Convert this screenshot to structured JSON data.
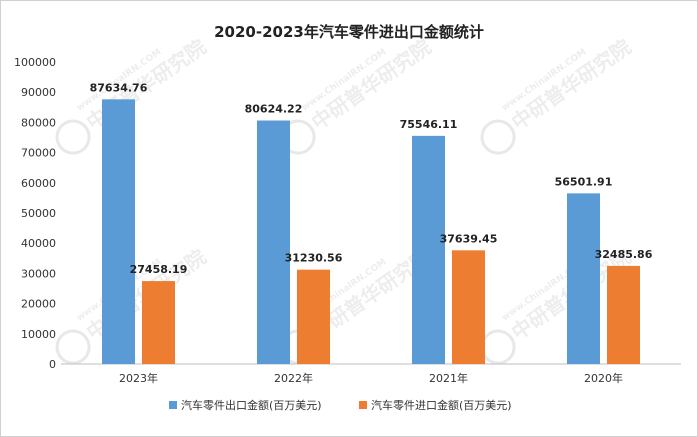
{
  "chart_data": {
    "type": "bar",
    "title": "2020-2023年汽车零件进出口金额统计",
    "categories": [
      "2023年",
      "2022年",
      "2021年",
      "2020年"
    ],
    "series": [
      {
        "name": "汽车零件出口金额(百万美元)",
        "color": "#5b9bd5",
        "values": [
          87634.76,
          80624.22,
          75546.11,
          56501.91
        ]
      },
      {
        "name": "汽车零件进口金额(百万美元)",
        "color": "#ed7d31",
        "values": [
          27458.19,
          31230.56,
          37639.45,
          32485.86
        ]
      }
    ],
    "ylim": [
      0,
      100000
    ],
    "yticks": [
      0,
      10000,
      20000,
      30000,
      40000,
      50000,
      60000,
      70000,
      80000,
      90000,
      100000
    ],
    "grid": false,
    "legend_position": "bottom"
  },
  "watermark": {
    "text": "中研普华研究院",
    "url": "www.ChinaIRN.COM",
    "logo": "CIRN"
  }
}
